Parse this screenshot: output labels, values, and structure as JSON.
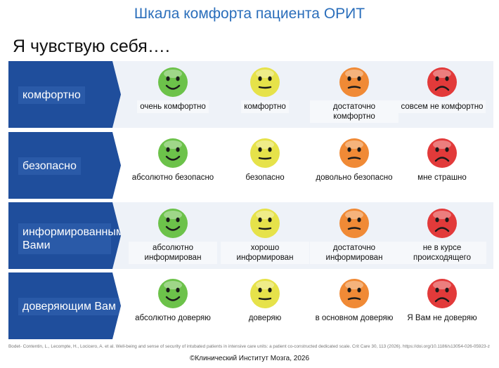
{
  "title": "Шкала комфорта пациента ОРИТ",
  "subtitle": "Я чувствую себя….",
  "rows": [
    {
      "label": "комфортно",
      "items": [
        {
          "text": "очень комфортно",
          "face": "happy-face-icon",
          "color": "#6cc24a"
        },
        {
          "text": "комфортно",
          "face": "neutral-face-icon",
          "color": "#e6e24a"
        },
        {
          "text": "достаточно комфортно",
          "face": "unsure-face-icon",
          "color": "#f08a36"
        },
        {
          "text": "совсем не комфортно",
          "face": "sad-face-icon",
          "color": "#e23a3a"
        }
      ]
    },
    {
      "label": "безопасно",
      "items": [
        {
          "text": "абсолютно безопасно",
          "face": "happy-face-icon",
          "color": "#6cc24a"
        },
        {
          "text": "безопасно",
          "face": "neutral-face-icon",
          "color": "#e6e24a"
        },
        {
          "text": "довольно безопасно",
          "face": "unsure-face-icon",
          "color": "#f08a36"
        },
        {
          "text": "мне страшно",
          "face": "sad-face-icon",
          "color": "#e23a3a"
        }
      ]
    },
    {
      "label": "информированным Вами",
      "items": [
        {
          "text": "абсолютно информирован",
          "face": "happy-face-icon",
          "color": "#6cc24a"
        },
        {
          "text": "хорошо информирован",
          "face": "neutral-face-icon",
          "color": "#e6e24a"
        },
        {
          "text": "достаточно информирован",
          "face": "unsure-face-icon",
          "color": "#f08a36"
        },
        {
          "text": "не в курсе происходящего",
          "face": "sad-face-icon",
          "color": "#e23a3a"
        }
      ]
    },
    {
      "label": "доверяющим Вам",
      "items": [
        {
          "text": "абсолютно доверяю",
          "face": "happy-face-icon",
          "color": "#6cc24a"
        },
        {
          "text": "доверяю",
          "face": "neutral-face-icon",
          "color": "#e6e24a"
        },
        {
          "text": "в основном доверяю",
          "face": "unsure-face-icon",
          "color": "#f08a36"
        },
        {
          "text": "Я Вам не доверяю",
          "face": "sad-face-icon",
          "color": "#e23a3a"
        }
      ]
    }
  ],
  "footer": {
    "reference": "Bodet- Contentin, L., Lecompte, H., Locicero, A. et al. Well-being and sense of security of intubated patients in intensive care units: a patient co-constructed dedicated scale. Crit Care 30, 113 (2026). https://doi.org/10.1186/s13054-026-05923-z",
    "copyright": "©Клинический Институт Мозга, 2026"
  }
}
